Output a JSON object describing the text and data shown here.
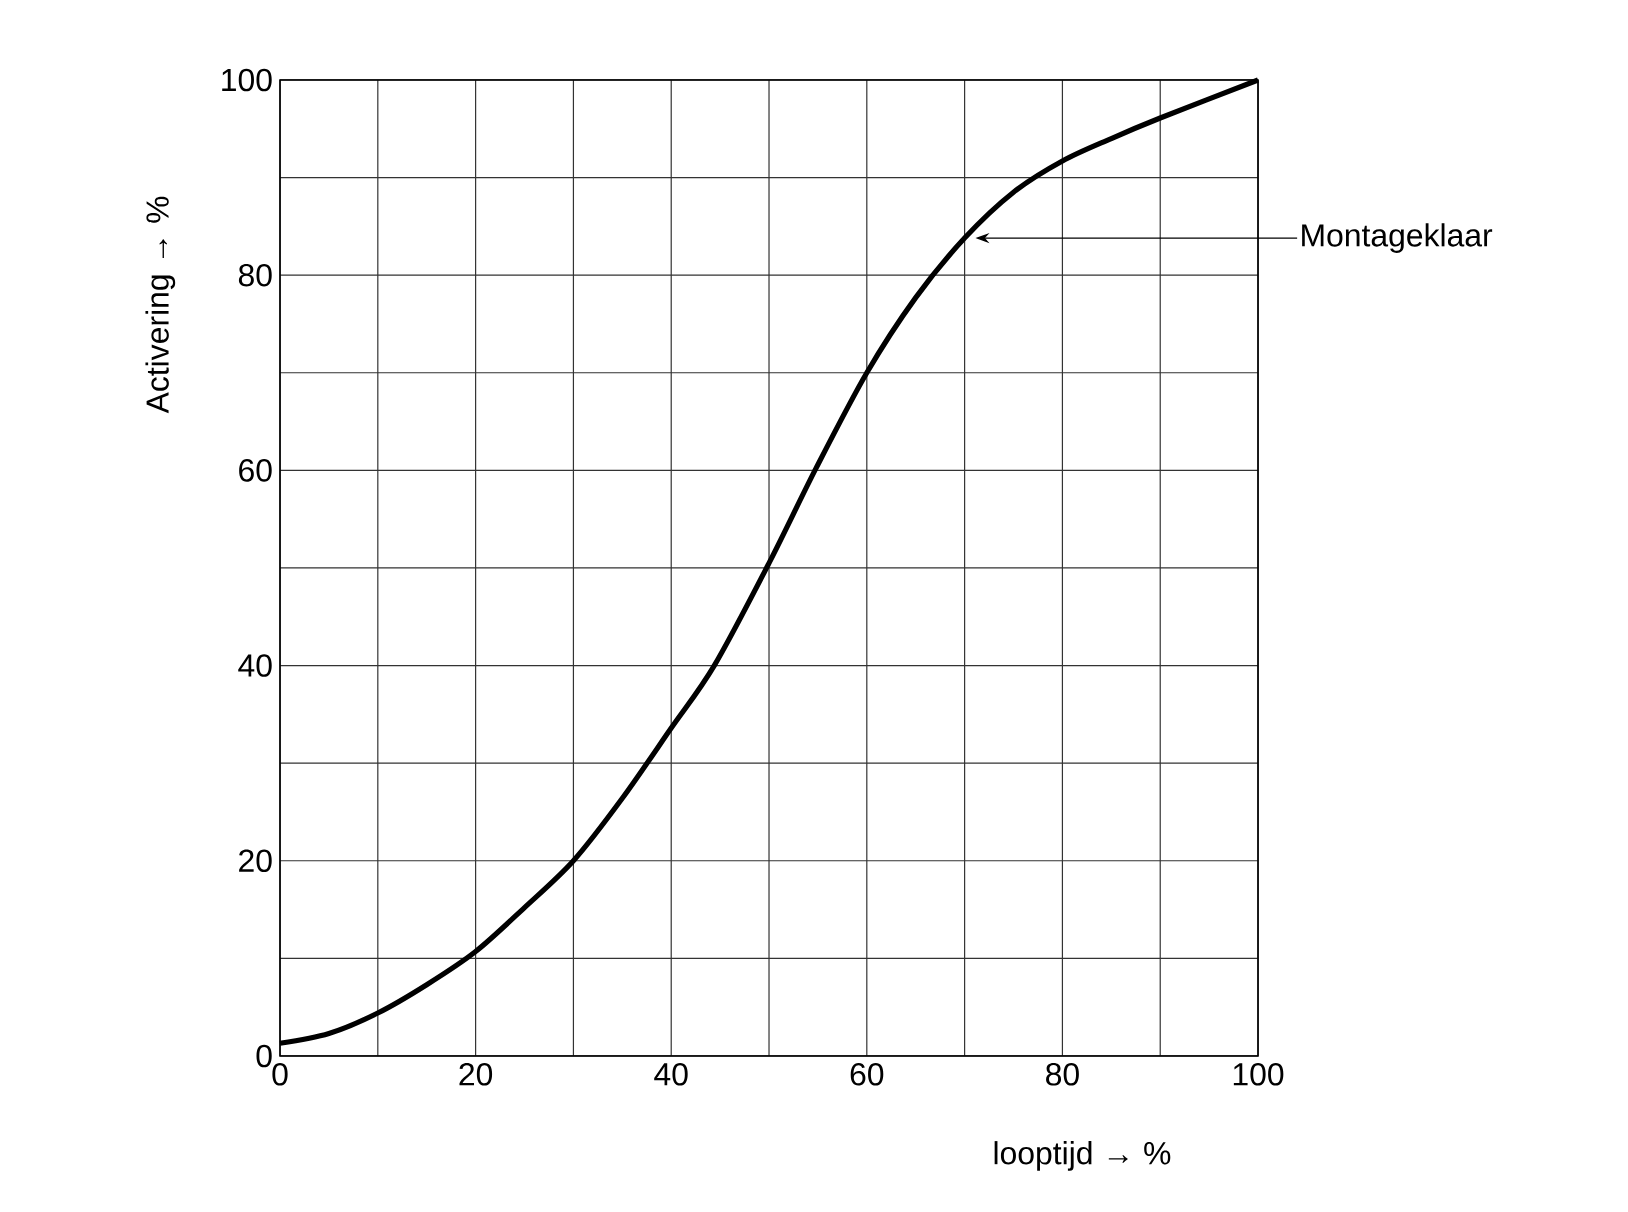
{
  "chart_data": {
    "type": "line",
    "xlabel": "looptijd → %",
    "ylabel": "Activering → %",
    "x": [
      0,
      5,
      10,
      15,
      20,
      25,
      30,
      35,
      40,
      44.4,
      50,
      54.8,
      60,
      65,
      70,
      75,
      80,
      85,
      90,
      100
    ],
    "series": [
      {
        "color": "#000000",
        "values": [
          1.3,
          2.3,
          4.4,
          7.3,
          10.7,
          15.2,
          20,
          26.4,
          33.6,
          40,
          50.5,
          60.2,
          70,
          77.7,
          83.8,
          88.5,
          91.7,
          94,
          96.1,
          100
        ]
      }
    ],
    "xlim": [
      0,
      100
    ],
    "ylim": [
      0,
      100
    ],
    "xticks": [
      0,
      {
        "value": 10,
        "label": null
      },
      20,
      {
        "value": 30,
        "label": null
      },
      40,
      {
        "value": 50,
        "label": null
      },
      60,
      {
        "value": 70,
        "label": null
      },
      80,
      {
        "value": 90,
        "label": null
      },
      100
    ],
    "yticks": [
      0,
      {
        "value": 10,
        "label": null
      },
      20,
      {
        "value": 30,
        "label": null
      },
      40,
      {
        "value": 50,
        "label": null
      },
      60,
      {
        "value": 70,
        "label": null
      },
      80,
      {
        "value": 90,
        "label": null
      },
      100
    ],
    "grid": true,
    "marker": "none",
    "line_style": "solid",
    "annotations": [
      {
        "text": "Montageklaar",
        "x": 70.5,
        "y": 83.8
      }
    ]
  }
}
